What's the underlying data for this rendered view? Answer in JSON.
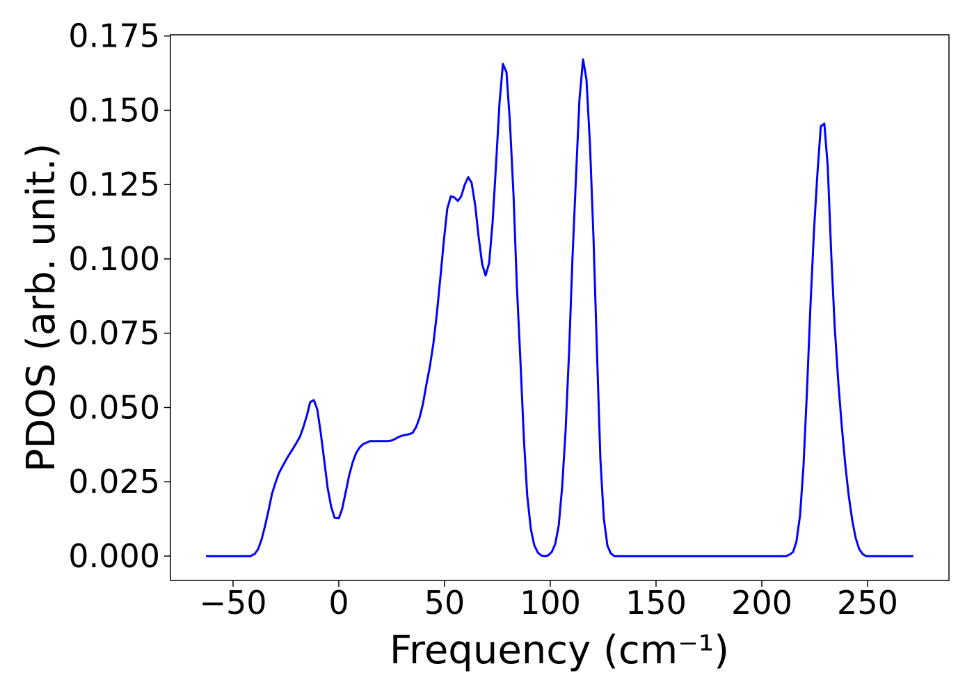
{
  "chart_data": {
    "type": "line",
    "xlabel": "Frequency (cm⁻¹)",
    "ylabel": "PDOS (arb. unit.)",
    "xlim": [
      -79.6,
      288.5
    ],
    "ylim": [
      -0.0082,
      0.1754
    ],
    "xticks": [
      {
        "value": -50,
        "label": "−50"
      },
      0,
      50,
      100,
      150,
      200,
      250
    ],
    "yticks": [
      {
        "value": 0,
        "label": "0.000"
      },
      0.025,
      {
        "value": 0.05,
        "label": "0.050"
      },
      0.075,
      {
        "value": 0.1,
        "label": "0.100"
      },
      0.125,
      {
        "value": 0.15,
        "label": "0.150"
      },
      0.175
    ],
    "grid": false,
    "x": [
      -62.8,
      -41.8,
      -39.8,
      -38.2,
      -36.5,
      -34.9,
      -33.2,
      -31.6,
      -29.9,
      -28.3,
      -26.6,
      -25.0,
      -23.4,
      -21.7,
      -20.1,
      -18.4,
      -16.8,
      -15.1,
      -13.5,
      -11.8,
      -10.2,
      -8.6,
      -6.9,
      -5.3,
      -3.6,
      -2.0,
      0,
      1.6,
      3.3,
      4.9,
      6.6,
      8.2,
      9.9,
      11.5,
      13.2,
      14.8,
      17.4,
      20.7,
      23.4,
      25.0,
      26.6,
      28.3,
      29.9,
      31.6,
      33.2,
      34.9,
      36.5,
      38.2,
      39.8,
      41.4,
      43.1,
      44.7,
      46.4,
      48.0,
      49.7,
      51.3,
      53.0,
      54.6,
      56.3,
      57.9,
      59.5,
      61.2,
      62.8,
      64.5,
      66.1,
      67.8,
      69.4,
      71.1,
      72.7,
      74.3,
      76.0,
      77.6,
      79.3,
      80.9,
      82.6,
      84.2,
      85.9,
      87.5,
      89.1,
      90.8,
      92.4,
      94.1,
      95.7,
      97.4,
      99.0,
      100.7,
      102.3,
      104.0,
      105.6,
      107.2,
      108.9,
      110.5,
      112.2,
      113.8,
      115.5,
      117.1,
      118.8,
      120.4,
      122.0,
      123.7,
      125.3,
      127.0,
      128.6,
      130.3,
      211.5,
      213.2,
      214.8,
      216.4,
      218.1,
      219.7,
      221.4,
      223.0,
      224.7,
      226.3,
      227.9,
      229.6,
      231.2,
      232.9,
      234.5,
      236.2,
      237.8,
      239.5,
      241.1,
      242.8,
      244.4,
      246.1,
      247.7,
      249.3,
      271.7
    ],
    "series": [
      {
        "color": "#0000ff",
        "values": [
          0,
          0,
          0.0007,
          0.0023,
          0.0056,
          0.0101,
          0.0155,
          0.0209,
          0.0248,
          0.0279,
          0.0302,
          0.0323,
          0.0342,
          0.0361,
          0.038,
          0.0401,
          0.0433,
          0.0473,
          0.0518,
          0.0525,
          0.0494,
          0.0419,
          0.0323,
          0.023,
          0.0166,
          0.0129,
          0.0127,
          0.0159,
          0.0216,
          0.0272,
          0.0316,
          0.0347,
          0.0366,
          0.0377,
          0.0382,
          0.0387,
          0.0387,
          0.0387,
          0.0387,
          0.0389,
          0.0394,
          0.0401,
          0.0405,
          0.0408,
          0.041,
          0.0415,
          0.0433,
          0.0466,
          0.0513,
          0.0576,
          0.064,
          0.0715,
          0.0818,
          0.0935,
          0.1064,
          0.1169,
          0.1211,
          0.1207,
          0.1195,
          0.1211,
          0.1249,
          0.1275,
          0.1256,
          0.1179,
          0.1075,
          0.0982,
          0.0944,
          0.0986,
          0.1122,
          0.131,
          0.1525,
          0.1656,
          0.1628,
          0.1462,
          0.1216,
          0.0911,
          0.0654,
          0.0396,
          0.0204,
          0.0091,
          0.0037,
          0.0012,
          0.0002,
          0,
          0.0002,
          0.0014,
          0.004,
          0.0103,
          0.0232,
          0.0419,
          0.0689,
          0.1005,
          0.1286,
          0.1537,
          0.1671,
          0.1603,
          0.138,
          0.1075,
          0.0701,
          0.0326,
          0.0127,
          0.0035,
          0.0009,
          0,
          0,
          0.0005,
          0.0014,
          0.0049,
          0.0138,
          0.0302,
          0.056,
          0.0841,
          0.1099,
          0.1286,
          0.1446,
          0.1455,
          0.131,
          0.1005,
          0.0771,
          0.0583,
          0.0438,
          0.0307,
          0.0204,
          0.0119,
          0.0061,
          0.0023,
          0.0007,
          0,
          0
        ]
      }
    ]
  }
}
